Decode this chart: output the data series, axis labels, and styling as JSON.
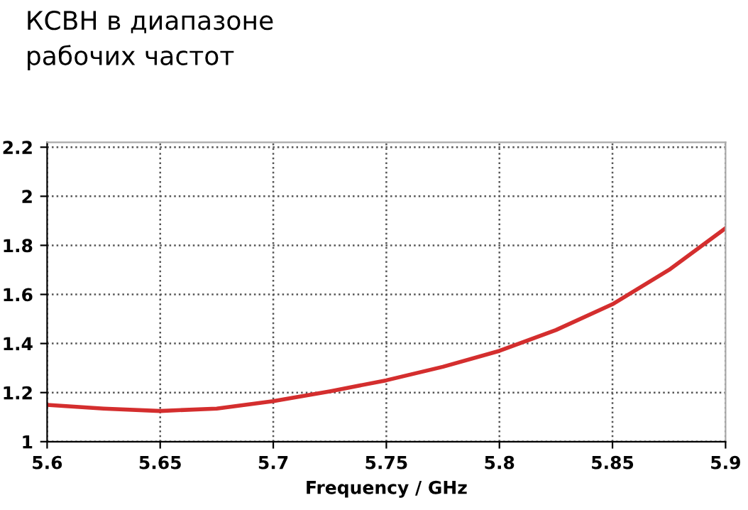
{
  "chart_data": {
    "type": "line",
    "title": "КСВН в диапазоне\nрабочих частот",
    "xlabel": "Frequency / GHz",
    "x": [
      5.6,
      5.625,
      5.65,
      5.675,
      5.7,
      5.725,
      5.75,
      5.775,
      5.8,
      5.825,
      5.85,
      5.875,
      5.9
    ],
    "series": [
      {
        "color": "#d42e2e",
        "values": [
          1.15,
          1.135,
          1.125,
          1.135,
          1.165,
          1.205,
          1.25,
          1.305,
          1.37,
          1.455,
          1.56,
          1.7,
          1.87
        ]
      }
    ],
    "xlim": [
      5.6,
      5.9
    ],
    "xticks": [
      5.6,
      5.65,
      5.7,
      5.75,
      5.8,
      5.85,
      5.9
    ],
    "ylim": [
      1,
      2.22
    ],
    "yticks": [
      1,
      1.2,
      1.4,
      1.6,
      1.8,
      2,
      2.2
    ],
    "grid": true,
    "marker": "none",
    "line_style": "solid"
  }
}
